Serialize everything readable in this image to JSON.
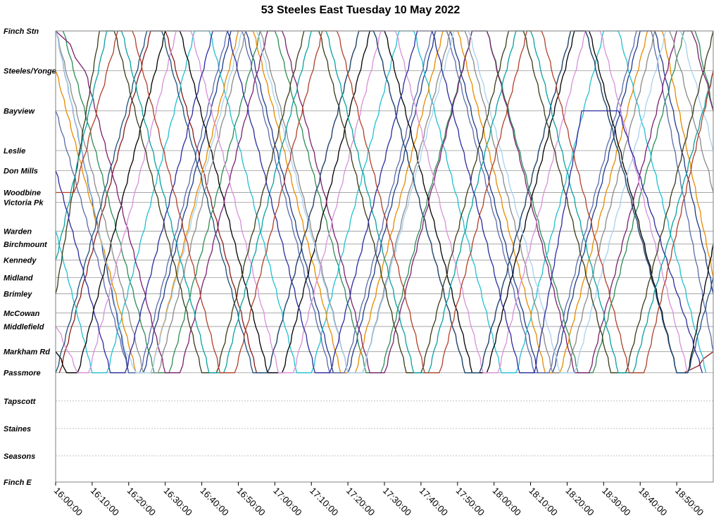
{
  "chart_data": {
    "type": "line",
    "title": "53 Steeles East Tuesday 10 May 2022",
    "xlabel": "",
    "ylabel": "",
    "x_axis": {
      "kind": "time",
      "range": [
        "16:00:00",
        "19:00:00"
      ],
      "tick_labels": [
        "16:00:00",
        "16:10:00",
        "16:20:00",
        "16:30:00",
        "16:40:00",
        "16:50:00",
        "17:00:00",
        "17:10:00",
        "17:20:00",
        "17:30:00",
        "17:40:00",
        "17:50:00",
        "18:00:00",
        "18:10:00",
        "18:20:00",
        "18:30:00",
        "18:40:00",
        "18:50:00"
      ]
    },
    "y_axis": {
      "kind": "stops",
      "order": "top-to-bottom",
      "stops": [
        "Finch Stn",
        "Steeles/Yonge",
        "Bayview",
        "Leslie",
        "Don Mills",
        "Woodbine",
        "Victoria Pk",
        "Warden",
        "Birchmount",
        "Kennedy",
        "Midland",
        "Brimley",
        "McCowan",
        "Middlefield",
        "Markham Rd",
        "Passmore",
        "Tapscott",
        "Staines",
        "Seasons",
        "Finch E"
      ],
      "stop_position": [
        0.0,
        0.0883,
        0.1771,
        0.2652,
        0.3099,
        0.3581,
        0.3797,
        0.4439,
        0.4724,
        0.5081,
        0.5466,
        0.5828,
        0.6253,
        0.6551,
        0.7109,
        0.7578,
        0.8203,
        0.8813,
        0.942,
        1.0
      ]
    },
    "grid": true,
    "legend": "none",
    "series_colors": [
      "#1f3a8a",
      "#8b1a1a",
      "#2e8b57",
      "#20c0d0",
      "#e58a00",
      "#5a6aa8",
      "#000000",
      "#7b1f6f",
      "#8a8a8a",
      "#a7d0f0",
      "#d890d8",
      "#1c4f7a",
      "#3a3a1a",
      "#0aa0a0",
      "#2b2b9e",
      "#b0402a"
    ],
    "series": [
      {
        "color": "#1f3a8a",
        "trips": [
          [
            "16:00",
            "Finch Stn",
            "16:20",
            "Passmore"
          ],
          [
            "16:24",
            "Passmore",
            "16:48",
            "Finch Stn"
          ],
          [
            "16:52",
            "Finch Stn",
            "17:16",
            "Passmore"
          ],
          [
            "17:20",
            "Passmore",
            "17:44",
            "Finch Stn"
          ],
          [
            "17:48",
            "Finch Stn",
            "18:12",
            "Passmore"
          ],
          [
            "18:16",
            "Passmore",
            "18:40",
            "Finch Stn"
          ],
          [
            "18:44",
            "Finch Stn",
            "19:00",
            "Brimley"
          ]
        ]
      },
      {
        "color": "#8b1a1a",
        "trips": [
          [
            "16:01",
            "Passmore",
            "16:26",
            "Finch Stn"
          ],
          [
            "16:30",
            "Finch Stn",
            "16:55",
            "Passmore"
          ],
          [
            "16:58",
            "Passmore",
            "17:23",
            "Finch Stn"
          ],
          [
            "17:27",
            "Finch Stn",
            "17:52",
            "Passmore"
          ],
          [
            "17:56",
            "Passmore",
            "18:21",
            "Finch Stn"
          ],
          [
            "18:25",
            "Finch Stn",
            "18:50",
            "Passmore"
          ],
          [
            "18:52",
            "Passmore",
            "19:00",
            "Markham Rd"
          ]
        ]
      },
      {
        "color": "#2e8b57",
        "trips": [
          [
            "16:02",
            "Finch Stn",
            "16:27",
            "Passmore"
          ],
          [
            "16:31",
            "Passmore",
            "16:56",
            "Finch Stn"
          ],
          [
            "17:00",
            "Finch Stn",
            "17:25",
            "Passmore"
          ],
          [
            "17:29",
            "Passmore",
            "17:54",
            "Finch Stn"
          ],
          [
            "17:58",
            "Finch Stn",
            "18:23",
            "Passmore"
          ],
          [
            "18:27",
            "Passmore",
            "18:52",
            "Finch Stn"
          ],
          [
            "18:55",
            "Finch Stn",
            "19:00",
            "Bayview"
          ]
        ]
      },
      {
        "color": "#20c0d0",
        "trips": [
          [
            "16:00",
            "Warden",
            "16:10",
            "Passmore"
          ],
          [
            "16:14",
            "Passmore",
            "16:38",
            "Finch Stn"
          ],
          [
            "16:42",
            "Finch Stn",
            "17:06",
            "Passmore"
          ],
          [
            "17:10",
            "Passmore",
            "17:34",
            "Finch Stn"
          ],
          [
            "17:38",
            "Finch Stn",
            "18:02",
            "Passmore"
          ],
          [
            "18:06",
            "Passmore",
            "18:30",
            "Finch Stn"
          ],
          [
            "18:34",
            "Finch Stn",
            "18:58",
            "Passmore"
          ]
        ]
      },
      {
        "color": "#e58a00",
        "trips": [
          [
            "16:00",
            "Steeles/Yonge",
            "16:22",
            "Passmore"
          ],
          [
            "16:26",
            "Passmore",
            "16:50",
            "Finch Stn"
          ],
          [
            "16:54",
            "Finch Stn",
            "17:18",
            "Passmore"
          ],
          [
            "17:22",
            "Passmore",
            "17:46",
            "Finch Stn"
          ],
          [
            "17:50",
            "Finch Stn",
            "18:14",
            "Passmore"
          ],
          [
            "18:18",
            "Passmore",
            "18:42",
            "Finch Stn"
          ],
          [
            "18:46",
            "Finch Stn",
            "19:00",
            "Midland"
          ]
        ]
      },
      {
        "color": "#5a6aa8",
        "trips": [
          [
            "16:00",
            "Bayview",
            "16:20",
            "Passmore"
          ],
          [
            "16:23",
            "Passmore",
            "16:47",
            "Finch Stn"
          ],
          [
            "16:51",
            "Finch Stn",
            "17:15",
            "Passmore"
          ],
          [
            "17:19",
            "Passmore",
            "17:43",
            "Finch Stn"
          ],
          [
            "17:47",
            "Finch Stn",
            "18:11",
            "Passmore"
          ],
          [
            "18:15",
            "Passmore",
            "18:39",
            "Finch Stn"
          ],
          [
            "18:43",
            "Finch Stn",
            "19:00",
            "Markham Rd"
          ]
        ]
      },
      {
        "color": "#000000",
        "trips": [
          [
            "16:00",
            "Markham Rd",
            "16:03",
            "Passmore"
          ],
          [
            "16:06",
            "Passmore",
            "16:30",
            "Finch Stn"
          ],
          [
            "16:34",
            "Finch Stn",
            "16:58",
            "Passmore"
          ],
          [
            "17:02",
            "Passmore",
            "17:26",
            "Finch Stn"
          ],
          [
            "17:30",
            "Finch Stn",
            "17:54",
            "Passmore"
          ],
          [
            "17:58",
            "Passmore",
            "18:22",
            "Finch Stn"
          ],
          [
            "18:26",
            "Finch Stn",
            "18:50",
            "Passmore"
          ],
          [
            "18:53",
            "Passmore",
            "19:00",
            "Birchmount"
          ]
        ]
      },
      {
        "color": "#7b1f6f",
        "trips": [
          [
            "16:00",
            "Finch Stn",
            "16:08",
            "Steeles/Yonge"
          ],
          [
            "16:08",
            "Steeles/Yonge",
            "16:30",
            "Passmore"
          ],
          [
            "16:34",
            "Passmore",
            "16:58",
            "Finch Stn"
          ],
          [
            "17:02",
            "Finch Stn",
            "17:26",
            "Passmore"
          ],
          [
            "17:30",
            "Passmore",
            "17:54",
            "Finch Stn"
          ],
          [
            "17:58",
            "Finch Stn",
            "18:22",
            "Passmore"
          ],
          [
            "18:26",
            "Passmore",
            "18:50",
            "Finch Stn"
          ],
          [
            "18:54",
            "Finch Stn",
            "19:00",
            "Bayview"
          ]
        ]
      },
      {
        "color": "#8a8a8a",
        "trips": [
          [
            "16:00",
            "Finch Stn",
            "16:24",
            "Passmore"
          ],
          [
            "16:28",
            "Passmore",
            "16:52",
            "Finch Stn"
          ],
          [
            "16:56",
            "Finch Stn",
            "17:20",
            "Passmore"
          ],
          [
            "17:24",
            "Passmore",
            "17:48",
            "Finch Stn"
          ],
          [
            "17:52",
            "Finch Stn",
            "18:16",
            "Passmore"
          ],
          [
            "18:20",
            "Passmore",
            "18:44",
            "Finch Stn"
          ],
          [
            "18:48",
            "Finch Stn",
            "19:00",
            "Woodbine"
          ]
        ]
      },
      {
        "color": "#a7d0f0",
        "trips": [
          [
            "16:00",
            "Finch Stn",
            "16:19",
            "Markham Rd"
          ],
          [
            "16:19",
            "Markham Rd",
            "16:22",
            "Passmore"
          ],
          [
            "16:26",
            "Passmore",
            "16:51",
            "Finch Stn"
          ],
          [
            "16:55",
            "Finch Stn",
            "17:20",
            "Passmore"
          ],
          [
            "17:24",
            "Passmore",
            "17:49",
            "Finch Stn"
          ],
          [
            "17:53",
            "Finch Stn",
            "18:18",
            "Passmore"
          ],
          [
            "18:22",
            "Passmore",
            "18:47",
            "Finch Stn"
          ],
          [
            "18:51",
            "Finch Stn",
            "19:00",
            "Leslie"
          ]
        ]
      },
      {
        "color": "#d890d8",
        "trips": [
          [
            "16:00",
            "Middlefield",
            "16:06",
            "Passmore"
          ],
          [
            "16:09",
            "Passmore",
            "16:33",
            "Finch Stn"
          ],
          [
            "16:37",
            "Finch Stn",
            "17:01",
            "Passmore"
          ],
          [
            "17:05",
            "Passmore",
            "17:29",
            "Finch Stn"
          ],
          [
            "17:33",
            "Finch Stn",
            "17:57",
            "Passmore"
          ],
          [
            "18:01",
            "Passmore",
            "18:25",
            "Finch Stn"
          ],
          [
            "18:29",
            "Finch Stn",
            "18:53",
            "Passmore"
          ]
        ]
      },
      {
        "color": "#1c4f7a",
        "trips": [
          [
            "16:00",
            "Passmore",
            "16:25",
            "Finch Stn"
          ],
          [
            "16:29",
            "Finch Stn",
            "16:54",
            "Passmore"
          ],
          [
            "16:58",
            "Passmore",
            "17:23",
            "Finch Stn"
          ],
          [
            "17:27",
            "Finch Stn",
            "17:52",
            "Passmore"
          ],
          [
            "17:56",
            "Passmore",
            "18:21",
            "Finch Stn"
          ],
          [
            "18:25",
            "Finch Stn",
            "18:50",
            "Passmore"
          ],
          [
            "18:53",
            "Passmore",
            "19:00",
            "Midland"
          ]
        ]
      },
      {
        "color": "#3a3a1a",
        "trips": [
          [
            "16:00",
            "Brimley",
            "16:12",
            "Finch Stn"
          ],
          [
            "16:16",
            "Finch Stn",
            "16:40",
            "Passmore"
          ],
          [
            "16:44",
            "Passmore",
            "17:08",
            "Finch Stn"
          ],
          [
            "17:12",
            "Finch Stn",
            "17:36",
            "Passmore"
          ],
          [
            "17:40",
            "Passmore",
            "18:04",
            "Finch Stn"
          ],
          [
            "18:08",
            "Finch Stn",
            "18:32",
            "Passmore"
          ],
          [
            "18:36",
            "Passmore",
            "19:00",
            "Finch Stn"
          ]
        ]
      },
      {
        "color": "#0aa0a0",
        "trips": [
          [
            "16:00",
            "Kennedy",
            "16:14",
            "Finch Stn"
          ],
          [
            "16:18",
            "Finch Stn",
            "16:42",
            "Passmore"
          ],
          [
            "16:46",
            "Passmore",
            "17:10",
            "Finch Stn"
          ],
          [
            "17:14",
            "Finch Stn",
            "17:38",
            "Passmore"
          ],
          [
            "17:42",
            "Passmore",
            "18:06",
            "Finch Stn"
          ],
          [
            "18:10",
            "Finch Stn",
            "18:34",
            "Passmore"
          ],
          [
            "18:38",
            "Passmore",
            "19:00",
            "Steeles/Yonge"
          ]
        ]
      },
      {
        "color": "#2b2b9e",
        "trips": [
          [
            "16:00",
            "Don Mills",
            "16:15",
            "Passmore"
          ],
          [
            "16:19",
            "Passmore",
            "16:43",
            "Finch Stn"
          ],
          [
            "16:47",
            "Finch Stn",
            "17:11",
            "Passmore"
          ],
          [
            "17:15",
            "Passmore",
            "17:39",
            "Finch Stn"
          ],
          [
            "17:43",
            "Finch Stn",
            "18:07",
            "Passmore"
          ],
          [
            "18:11",
            "Passmore",
            "18:24",
            "Bayview"
          ],
          [
            "18:24",
            "Bayview",
            "18:34",
            "Bayview"
          ],
          [
            "18:34",
            "Bayview",
            "18:57",
            "Passmore"
          ]
        ]
      },
      {
        "color": "#b0402a",
        "trips": [
          [
            "16:00",
            "Woodbine",
            "16:05",
            "Woodbine"
          ],
          [
            "16:05",
            "Woodbine",
            "16:17",
            "Finch Stn"
          ],
          [
            "16:21",
            "Finch Stn",
            "16:45",
            "Passmore"
          ],
          [
            "16:49",
            "Passmore",
            "17:13",
            "Finch Stn"
          ],
          [
            "17:17",
            "Finch Stn",
            "17:41",
            "Passmore"
          ],
          [
            "17:45",
            "Passmore",
            "18:09",
            "Finch Stn"
          ],
          [
            "18:13",
            "Finch Stn",
            "18:37",
            "Passmore"
          ],
          [
            "18:41",
            "Passmore",
            "19:00",
            "Steeles/Yonge"
          ]
        ]
      }
    ]
  }
}
